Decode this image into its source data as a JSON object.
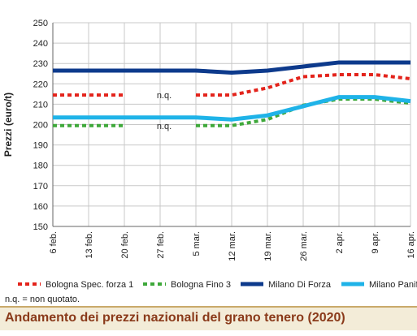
{
  "chart_data": {
    "type": "line",
    "title": "Andamento dei prezzi nazionali del grano tenero (2020)",
    "ylabel": "Prezzi (euro/t)",
    "xlabel": "",
    "ylim": [
      150,
      250
    ],
    "ytick_step": 10,
    "grid": true,
    "legend_position": "bottom",
    "categories": [
      "6 feb.",
      "13 feb.",
      "20 feb.",
      "27 feb.",
      "5 mar.",
      "12 mar.",
      "19 mar.",
      "26 mar.",
      "2 apr.",
      "9 apr.",
      "16 apr."
    ],
    "series": [
      {
        "name": "Bologna Spec. forza 1",
        "color": "#e3231b",
        "dash": "dotted",
        "values": [
          214.5,
          214.5,
          214.5,
          null,
          214.5,
          214.5,
          218,
          223.5,
          224.5,
          224.5,
          222.5
        ]
      },
      {
        "name": "Bologna Fino 3",
        "color": "#3ea83a",
        "dash": "dotted",
        "values": [
          199.5,
          199.5,
          199.5,
          null,
          199.5,
          199.5,
          202.5,
          209.5,
          212.5,
          212.5,
          210.5
        ]
      },
      {
        "name": "Milano Di Forza",
        "color": "#0d3a8c",
        "dash": "solid",
        "values": [
          226.5,
          226.5,
          226.5,
          226.5,
          226.5,
          225.5,
          226.5,
          228.5,
          230.5,
          230.5,
          230.5
        ]
      },
      {
        "name": "Milano Panificabile",
        "color": "#1fb3e8",
        "dash": "solid",
        "values": [
          203.5,
          203.5,
          203.5,
          203.5,
          203.5,
          202.5,
          204.5,
          209,
          213.5,
          213.5,
          211.5
        ]
      }
    ],
    "annotations": [
      {
        "text": "n.q.",
        "x_index": 3,
        "y": 214.5
      },
      {
        "text": "n.q.",
        "x_index": 3,
        "y": 199.5
      }
    ]
  },
  "note": "n.q. = non quotato.",
  "footer_title": "Andamento dei prezzi nazionali del grano tenero (2020)"
}
